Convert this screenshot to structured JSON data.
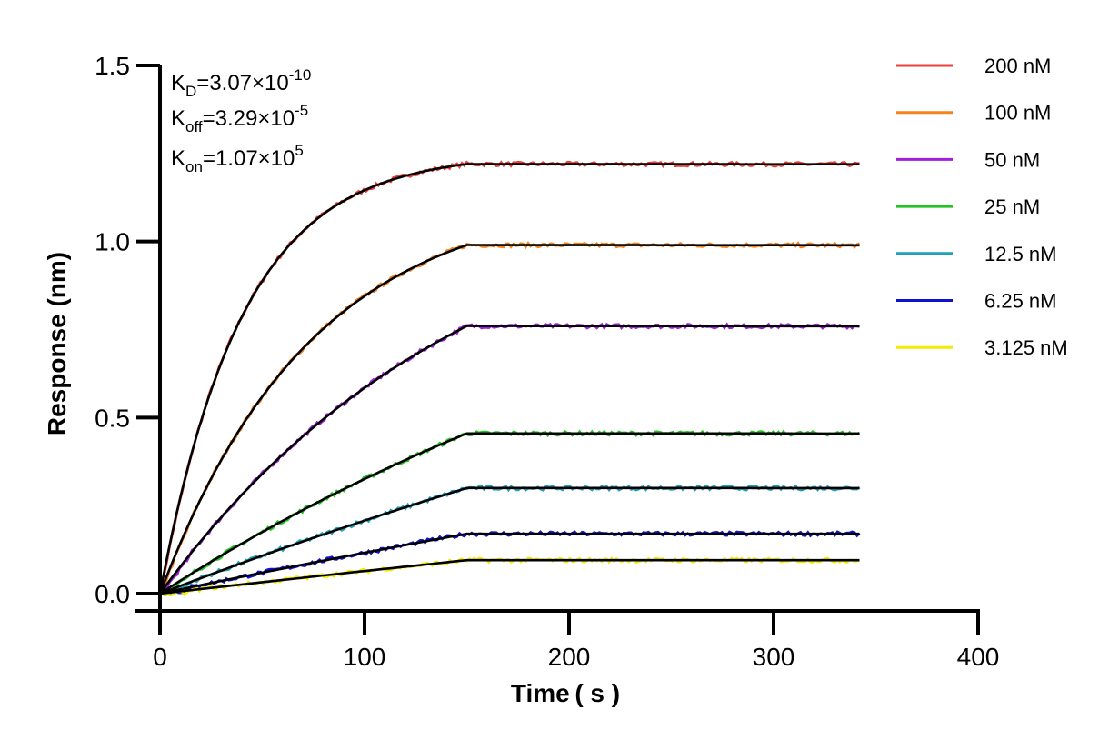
{
  "chart_data": {
    "type": "line",
    "xlabel": "Time ( s )",
    "ylabel": "Response (nm)",
    "xlim": [
      0,
      400
    ],
    "ylim": [
      0,
      1.5
    ],
    "xticks": [
      "0",
      "100",
      "200",
      "300",
      "400"
    ],
    "yticks": [
      "0.0",
      "0.5",
      "1.0",
      "1.5"
    ],
    "grid": false,
    "legend_position": "top-right",
    "association_end": 150,
    "dissociation_end": 343,
    "annotations": {
      "kd": {
        "base": "K",
        "sub": "D",
        "text": "=3.07×10",
        "sup": "-10"
      },
      "koff": {
        "base": "K",
        "sub": "off",
        "text": "=3.29×10",
        "sup": "-5"
      },
      "kon": {
        "base": "K",
        "sub": "on",
        "text": "=1.07×10",
        "sup": "5"
      }
    },
    "series": [
      {
        "name": "200 nM",
        "color": "#e8413c",
        "plateau": 1.22,
        "k_obs": 0.0248
      },
      {
        "name": "100 nM",
        "color": "#f5821f",
        "plateau": 0.99,
        "k_obs": 0.0135
      },
      {
        "name": "50 nM",
        "color": "#a020d8",
        "plateau": 0.76,
        "k_obs": 0.0066
      },
      {
        "name": "25 nM",
        "color": "#22c422",
        "plateau": 0.455,
        "k_obs": 0.003
      },
      {
        "name": "12.5 nM",
        "color": "#1fa0b8",
        "plateau": 0.3,
        "k_obs": 0.0015
      },
      {
        "name": "6.25 nM",
        "color": "#1010d0",
        "plateau": 0.17,
        "k_obs": 0.001
      },
      {
        "name": "3.125 nM",
        "color": "#f2ec00",
        "plateau": 0.095,
        "k_obs": 0.0005
      }
    ]
  }
}
